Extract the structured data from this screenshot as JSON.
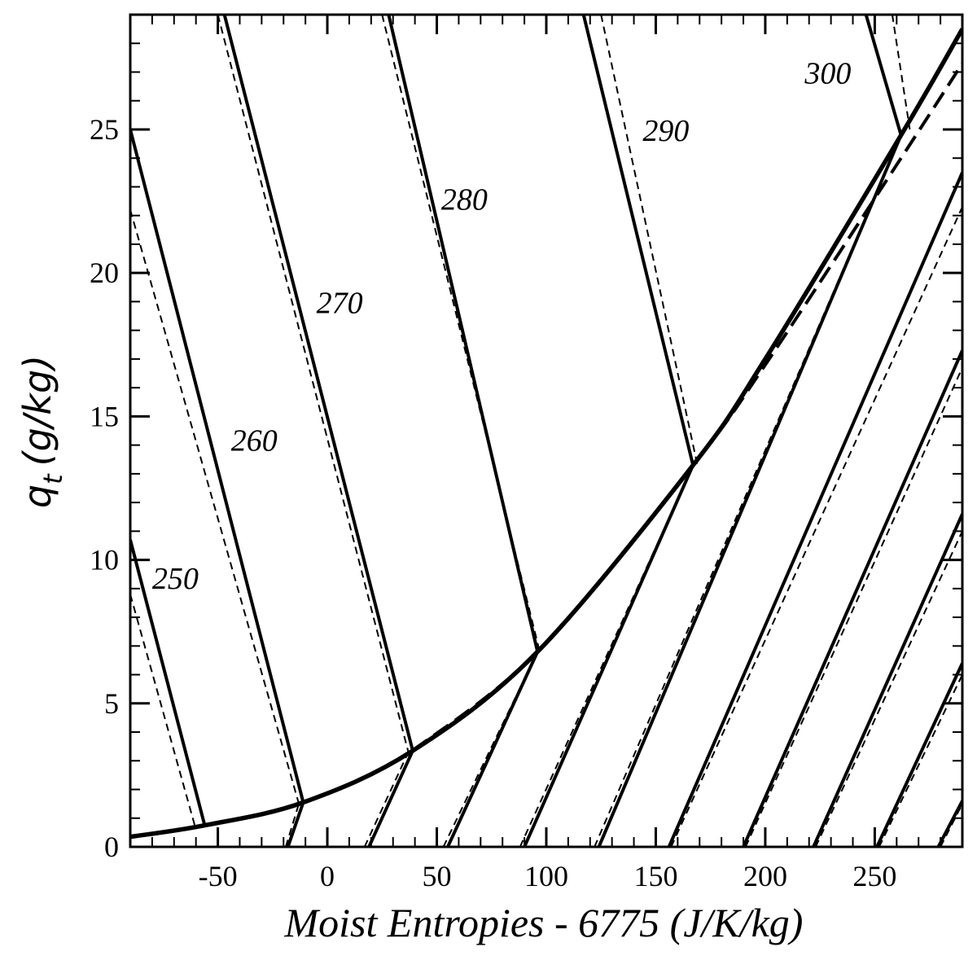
{
  "chart_data": {
    "type": "line",
    "xlabel": "Moist Entropies - 6775 (J/K/kg)",
    "ylabel": "q_t (g/kg)",
    "ylabel_main": "q",
    "ylabel_sub": "t",
    "ylabel_unit": "(g/kg)",
    "xlim": [
      -90,
      290
    ],
    "ylim": [
      0,
      29
    ],
    "xticks": [
      -50,
      0,
      50,
      100,
      150,
      200,
      250
    ],
    "yticks": [
      0,
      5,
      10,
      15,
      20,
      25
    ],
    "grid": false,
    "saturation_curve": {
      "name": "saturation",
      "x": [
        -90,
        -56,
        -11,
        39,
        96,
        167,
        200,
        262,
        290
      ],
      "y": [
        0.35,
        0.75,
        1.55,
        3.35,
        6.8,
        13.3,
        17.0,
        24.8,
        28.5
      ]
    },
    "saturation_curve_dashed": {
      "x": [
        39,
        96,
        167,
        200,
        262,
        290
      ],
      "y": [
        3.35,
        6.8,
        13.3,
        16.8,
        24.0,
        27.3
      ]
    },
    "isotherm_labels": [
      "250",
      "260",
      "270",
      "280",
      "290",
      "300"
    ],
    "label_positions": [
      {
        "x": -80,
        "y": 9.0
      },
      {
        "x": -44,
        "y": 13.8
      },
      {
        "x": -5,
        "y": 18.6
      },
      {
        "x": 52,
        "y": 22.2
      },
      {
        "x": 144,
        "y": 24.6
      },
      {
        "x": 218,
        "y": 26.6
      }
    ],
    "isotherms_upper": [
      {
        "label": "250",
        "solid": [
          [
            -90,
            10.7
          ],
          [
            -56,
            0.75
          ]
        ],
        "dashed": [
          [
            -90,
            8.8
          ],
          [
            -60,
            0.6
          ]
        ]
      },
      {
        "label": "260",
        "solid": [
          [
            -90,
            25.0
          ],
          [
            -11,
            1.55
          ]
        ],
        "dashed": [
          [
            -90,
            22.2
          ],
          [
            -13,
            1.5
          ]
        ]
      },
      {
        "label": "270",
        "solid": [
          [
            -47,
            29.0
          ],
          [
            39,
            3.35
          ]
        ],
        "dashed": [
          [
            -50,
            29.0
          ],
          [
            37,
            3.3
          ]
        ]
      },
      {
        "label": "280",
        "solid": [
          [
            28,
            29.0
          ],
          [
            96,
            6.8
          ]
        ],
        "dashed": [
          [
            25,
            29.0
          ],
          [
            97,
            6.8
          ]
        ]
      },
      {
        "label": "290",
        "solid": [
          [
            117,
            29.0
          ],
          [
            167,
            13.3
          ]
        ],
        "dashed": [
          [
            125,
            29.0
          ],
          [
            169,
            13.3
          ]
        ]
      },
      {
        "label": "300",
        "solid": [
          [
            246,
            29.0
          ],
          [
            262,
            24.8
          ]
        ],
        "dashed": [
          [
            258,
            29.0
          ],
          [
            266,
            25.0
          ]
        ]
      }
    ],
    "isotherms_lower": [
      {
        "solid": [
          [
            -18,
            0
          ],
          [
            -11,
            1.55
          ]
        ],
        "dashed": [
          [
            -19,
            0
          ],
          [
            -13,
            1.5
          ]
        ]
      },
      {
        "solid": [
          [
            19,
            0
          ],
          [
            39,
            3.35
          ]
        ],
        "dashed": [
          [
            17,
            0
          ],
          [
            37,
            3.3
          ]
        ]
      },
      {
        "solid": [
          [
            55,
            0
          ],
          [
            96,
            6.8
          ]
        ],
        "dashed": [
          [
            53,
            0
          ],
          [
            96,
            6.8
          ]
        ]
      },
      {
        "solid": [
          [
            90,
            0
          ],
          [
            167,
            13.3
          ]
        ],
        "dashed": [
          [
            88,
            0
          ],
          [
            167,
            13.3
          ]
        ]
      },
      {
        "solid": [
          [
            124,
            0
          ],
          [
            262,
            24.8
          ]
        ],
        "dashed": [
          [
            122,
            0
          ],
          [
            262,
            24.8
          ]
        ]
      },
      {
        "solid": [
          [
            156,
            0
          ],
          [
            290,
            23.5
          ]
        ],
        "dashed": [
          [
            157,
            0
          ],
          [
            290,
            22.3
          ]
        ]
      },
      {
        "solid": [
          [
            190,
            0
          ],
          [
            290,
            17.3
          ]
        ],
        "dashed": [
          [
            191,
            0
          ],
          [
            290,
            16.7
          ]
        ]
      },
      {
        "solid": [
          [
            222,
            0
          ],
          [
            290,
            11.6
          ]
        ],
        "dashed": [
          [
            223,
            0
          ],
          [
            290,
            11.0
          ]
        ]
      },
      {
        "solid": [
          [
            251,
            0
          ],
          [
            290,
            6.4
          ]
        ],
        "dashed": [
          [
            252,
            0
          ],
          [
            290,
            6.0
          ]
        ]
      },
      {
        "solid": [
          [
            279,
            0
          ],
          [
            290,
            1.6
          ]
        ],
        "dashed": [
          [
            280,
            0
          ],
          [
            290,
            1.5
          ]
        ]
      }
    ]
  }
}
